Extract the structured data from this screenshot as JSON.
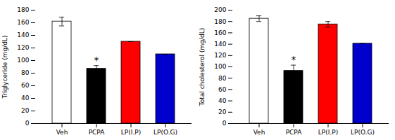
{
  "chart_data": [
    {
      "type": "bar",
      "ylabel": "Triglyceride (mg/dL)",
      "categories": [
        "Veh",
        "PCPA",
        "LP(I.P)",
        "LP(O.G)"
      ],
      "values": [
        162,
        87,
        130,
        110
      ],
      "errors": [
        7,
        5,
        0,
        0
      ],
      "colors": [
        "#ffffff",
        "#000000",
        "#ff0000",
        "#0000cc"
      ],
      "ylim": [
        0,
        180
      ],
      "yticks": [
        0,
        20,
        40,
        60,
        80,
        100,
        120,
        140,
        160,
        180
      ],
      "annotations": [
        {
          "text": "*",
          "x": "PCPA",
          "y": 95
        }
      ]
    },
    {
      "type": "bar",
      "ylabel": "Total cholesterol (mg/dL)",
      "categories": [
        "Veh",
        "PCPA",
        "LP(I.P)",
        "LP(O.G)"
      ],
      "values": [
        185,
        93,
        175,
        141
      ],
      "errors": [
        5,
        10,
        5,
        0
      ],
      "colors": [
        "#ffffff",
        "#000000",
        "#ff0000",
        "#0000cc"
      ],
      "ylim": [
        0,
        200
      ],
      "yticks": [
        0,
        20,
        40,
        60,
        80,
        100,
        120,
        140,
        160,
        180,
        200
      ],
      "annotations": [
        {
          "text": "*",
          "x": "PCPA",
          "y": 107
        }
      ]
    }
  ]
}
